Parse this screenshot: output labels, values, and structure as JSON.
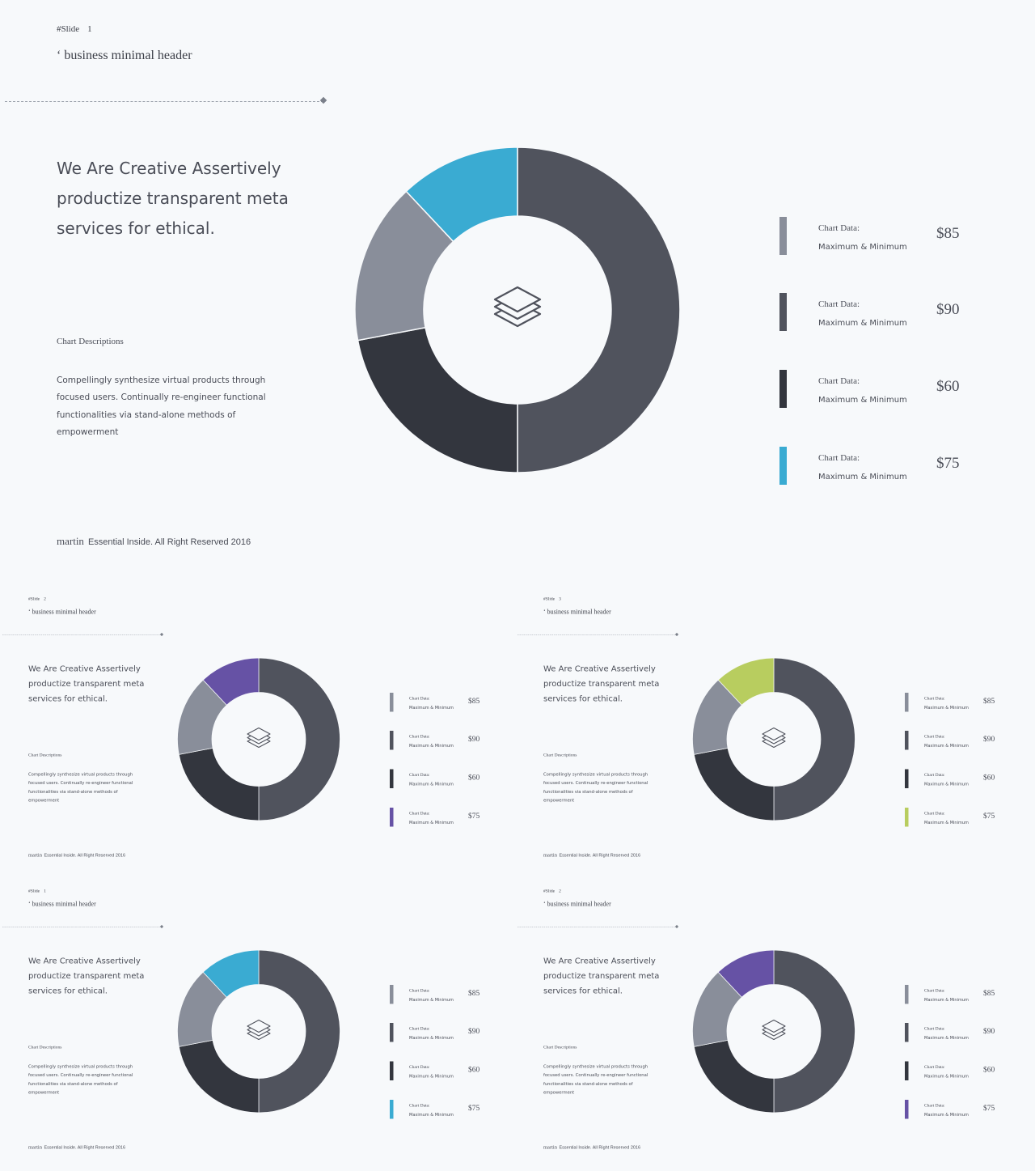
{
  "slides": [
    {
      "slide_label": "#Slide",
      "slide_number": "1",
      "header": "‘ business minimal header",
      "headline": "We Are Creative Assertively productize transparent meta services for ethical.",
      "desc_title": "Chart Descriptions",
      "desc_body": "Compellingly synthesize virtual products through focused users. Continually re-engineer functional functionalities via stand-alone methods of empowerment",
      "footer_brand": "martin",
      "footer_text": "Essential Inside. All Right Reserved 2016",
      "accent": "#3aabd2"
    },
    {
      "slide_label": "#Slide",
      "slide_number": "2",
      "header": "‘ business minimal header",
      "headline": "We Are Creative Assertively productize transparent meta services for ethical.",
      "desc_title": "Chart Descriptions",
      "desc_body": "Compellingly synthesize virtual products through focused users. Continually re-engineer functional functionalities via stand-alone methods of empowerment",
      "footer_brand": "martin",
      "footer_text": "Essential Inside. All Right Reserved 2016",
      "accent": "#6652a5"
    },
    {
      "slide_label": "#Slide",
      "slide_number": "3",
      "header": "‘ business minimal header",
      "headline": "We Are Creative Assertively productize transparent meta services for ethical.",
      "desc_title": "Chart Descriptions",
      "desc_body": "Compellingly synthesize virtual products through focused users. Continually re-engineer functional functionalities via stand-alone methods of empowerment",
      "footer_brand": "martin",
      "footer_text": "Essential Inside. All Right Reserved 2016",
      "accent": "#b8cd5f"
    },
    {
      "slide_label": "#Slide",
      "slide_number": "1",
      "header": "‘ business minimal header",
      "headline": "We Are Creative Assertively productize transparent meta services for ethical.",
      "desc_title": "Chart Descriptions",
      "desc_body": "Compellingly synthesize virtual products through focused users. Continually re-engineer functional functionalities via stand-alone methods of empowerment",
      "footer_brand": "martin",
      "footer_text": "Essential Inside. All Right Reserved 2016",
      "accent": "#3aabd2"
    },
    {
      "slide_label": "#Slide",
      "slide_number": "2",
      "header": "‘ business minimal header",
      "headline": "We Are Creative Assertively productize transparent meta services for ethical.",
      "desc_title": "Chart Descriptions",
      "desc_body": "Compellingly synthesize virtual products through focused users. Continually re-engineer functional functionalities via stand-alone methods of empowerment",
      "footer_brand": "martin",
      "footer_text": "Essential Inside. All Right Reserved 2016",
      "accent": "#6652a5"
    }
  ],
  "center_icon": "layers-icon",
  "chart_data": {
    "type": "pie",
    "donut": true,
    "segment_percent": [
      50,
      22,
      16,
      12
    ],
    "segment_colors": [
      "#50535d",
      "#33363e",
      "#898e9a",
      "accent"
    ],
    "legend": [
      {
        "label": "Chart Data:",
        "sublabel": "Maximum & Minimum",
        "value": "$85",
        "color": "#898e9a"
      },
      {
        "label": "Chart Data:",
        "sublabel": "Maximum & Minimum",
        "value": "$90",
        "color": "#50535d"
      },
      {
        "label": "Chart Data:",
        "sublabel": "Maximum & Minimum",
        "value": "$60",
        "color": "#33363e"
      },
      {
        "label": "Chart Data:",
        "sublabel": "Maximum & Minimum",
        "value": "$75",
        "color": "accent"
      }
    ]
  }
}
